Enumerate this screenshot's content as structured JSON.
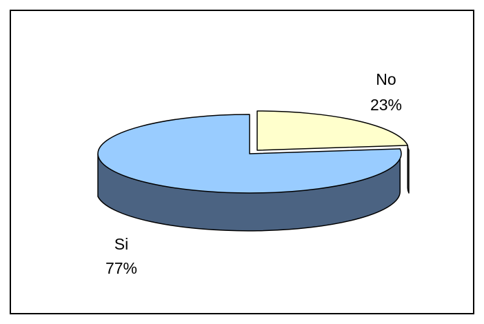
{
  "chart_data": {
    "type": "pie",
    "style": "3d-exploded",
    "slices": [
      {
        "name": "Si",
        "value": 77,
        "label": "77%",
        "color": "#99ccff",
        "side_color": "#4b6382"
      },
      {
        "name": "No",
        "value": 23,
        "label": "23%",
        "color": "#ffffcc",
        "side_color": "#80806a"
      }
    ],
    "legend": "none",
    "border": true
  }
}
